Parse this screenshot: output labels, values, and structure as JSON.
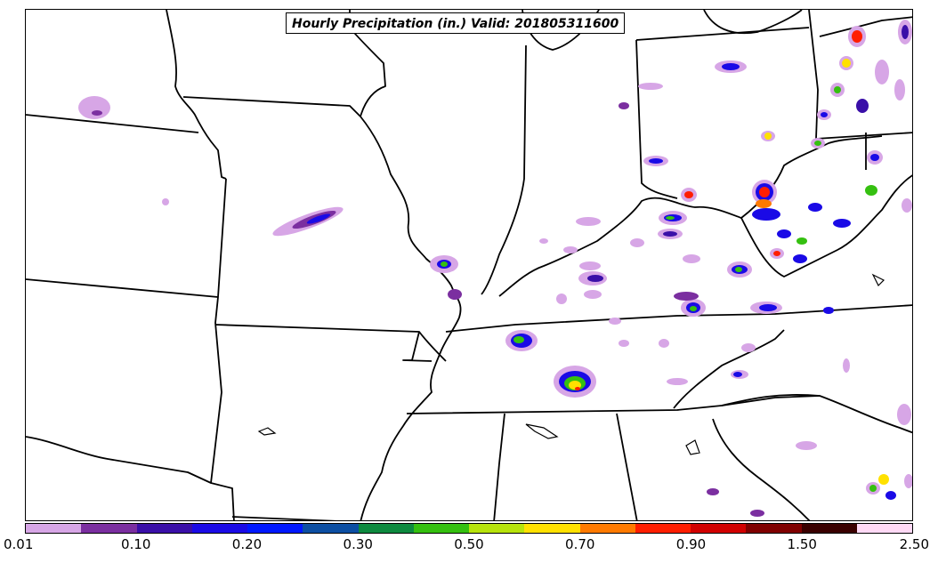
{
  "title": "Hourly Precipitation (in.) Valid: 201805311600",
  "colorbar": {
    "colors": [
      "#d7a6e6",
      "#7b2fa0",
      "#3a0fa8",
      "#1a0ae6",
      "#0018ff",
      "#0d4fa3",
      "#0e8a3f",
      "#35c010",
      "#b7e30c",
      "#ffe100",
      "#ff7a00",
      "#ff1e00",
      "#d10000",
      "#800000",
      "#3a0000",
      "#ffd9f5"
    ],
    "tick_labels": [
      "0.01",
      "0.10",
      "0.20",
      "0.30",
      "0.50",
      "0.70",
      "0.90",
      "1.50",
      "2.50"
    ]
  },
  "map": {
    "region": "Central and Southeastern United States",
    "boundaries": "state borders and Great Lakes coastline",
    "field": "hourly precipitation",
    "units": "in."
  }
}
